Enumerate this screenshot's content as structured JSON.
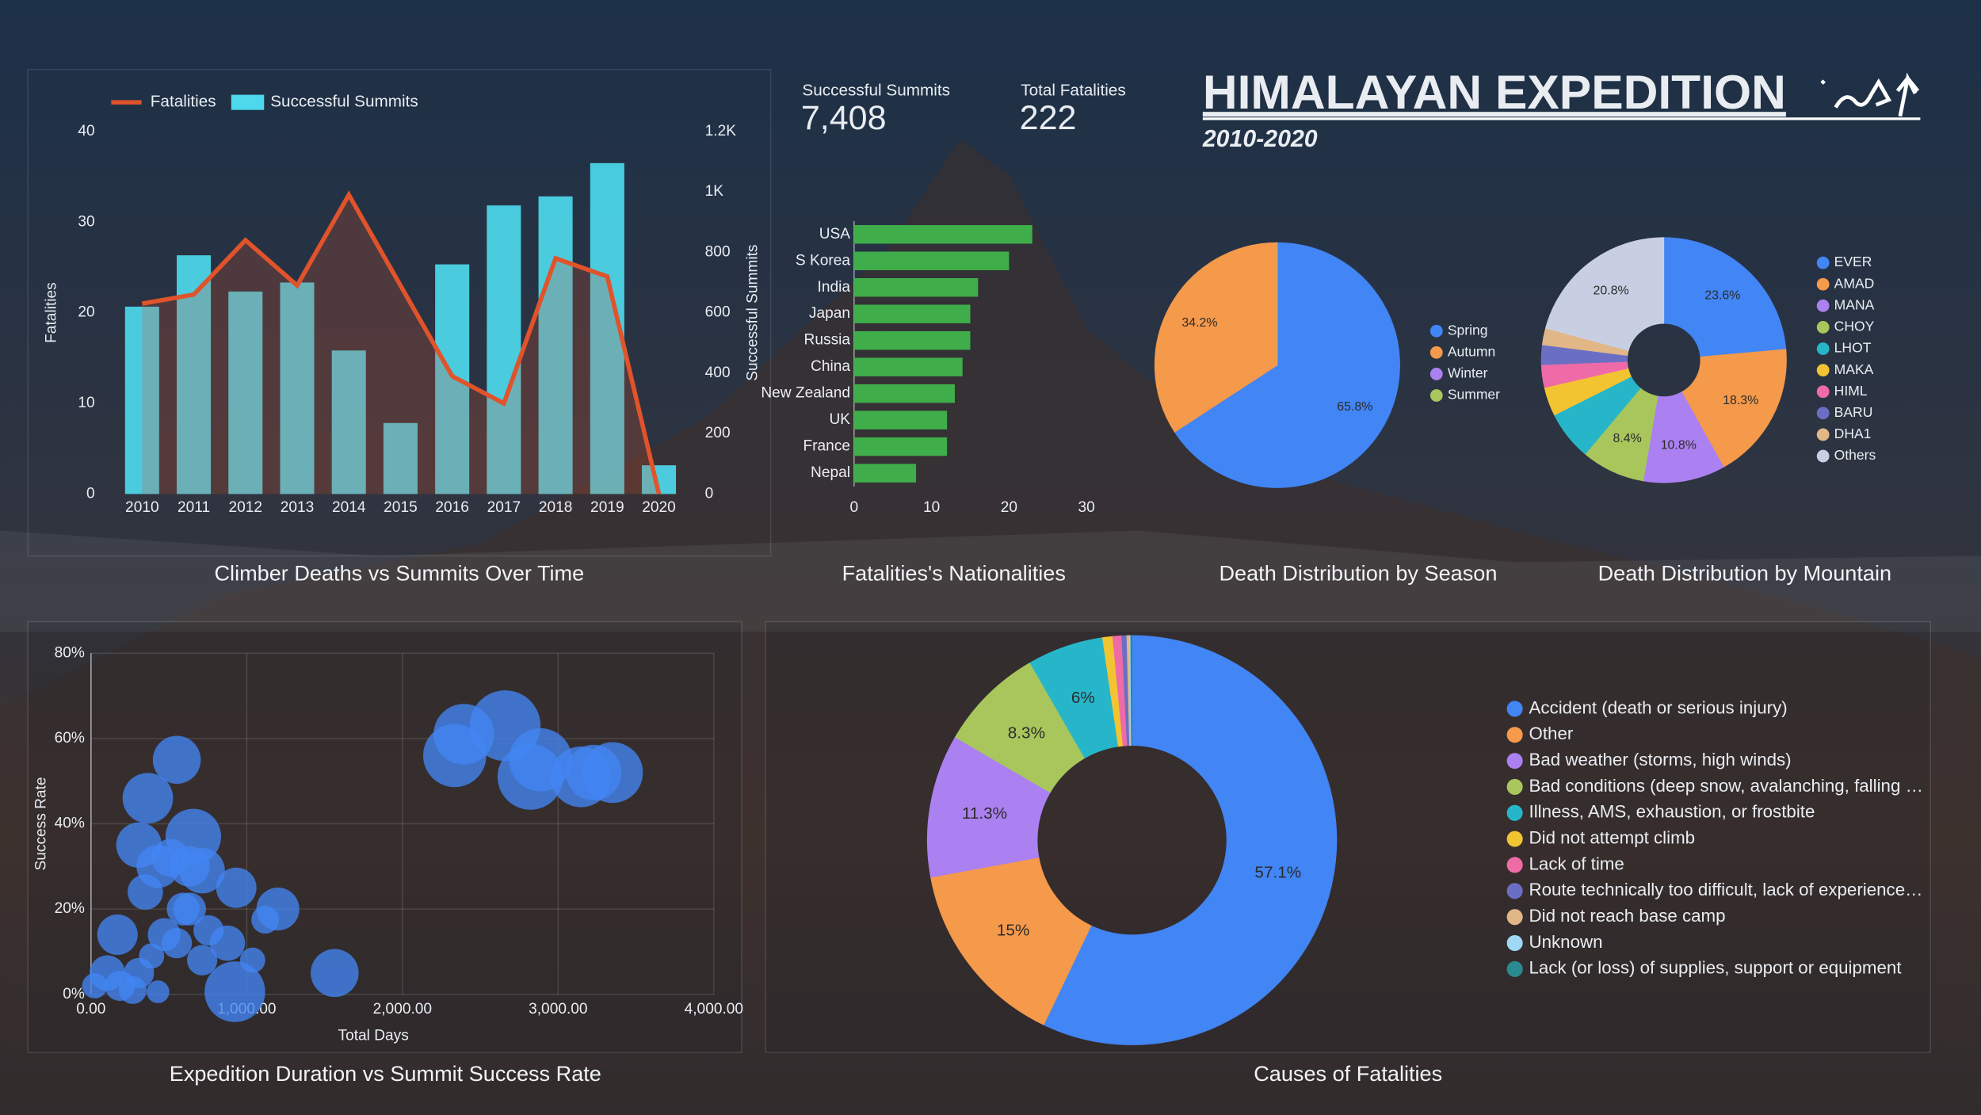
{
  "header": {
    "title": "HIMALAYAN EXPEDITION",
    "subtitle": "2010-2020"
  },
  "kpis": [
    {
      "label": "Successful Summits",
      "value": 7408,
      "value_label": "7,408"
    },
    {
      "label": "Total Fatalities",
      "value": 222
    }
  ],
  "chart_data": [
    {
      "type": "combo",
      "title": "Climber Deaths vs Summits Over Time",
      "categories": [
        "2010",
        "2011",
        "2012",
        "2013",
        "2014",
        "2015",
        "2016",
        "2017",
        "2018",
        "2019",
        "2020"
      ],
      "ylabel": "Fatalities",
      "y2label": "Successful Summits",
      "ylim": [
        0,
        40
      ],
      "yticks": [
        0,
        10,
        20,
        30,
        40
      ],
      "y2lim": [
        0,
        1200
      ],
      "y2ticks": [
        0,
        200,
        400,
        600,
        800,
        {
          "value": 1000,
          "label": "1K"
        },
        {
          "value": 1200,
          "label": "1.2K"
        }
      ],
      "legend": "top-left",
      "series": [
        {
          "name": "Fatalities",
          "type": "line",
          "color": "#e0532b",
          "values": [
            21,
            22,
            28,
            23,
            33,
            23,
            13,
            10,
            26,
            24,
            0
          ]
        },
        {
          "name": "Successful Summits",
          "type": "bar",
          "axis": "y2",
          "color": "#4dd8ec",
          "values": [
            620,
            790,
            670,
            700,
            475,
            235,
            760,
            955,
            985,
            1095,
            95
          ]
        }
      ]
    },
    {
      "type": "bar",
      "orientation": "horizontal",
      "title": "Fatalities's Nationalities",
      "categories": [
        "USA",
        "S Korea",
        "India",
        "Japan",
        "Russia",
        "China",
        "New Zealand",
        "UK",
        "France",
        "Nepal"
      ],
      "values": [
        23,
        20,
        16,
        15,
        15,
        14,
        13,
        12,
        12,
        8
      ],
      "color": "#3fae4a",
      "xlim": [
        0,
        30
      ],
      "xticks": [
        0,
        10,
        20,
        30
      ]
    },
    {
      "type": "pie",
      "title": "Death Distribution by Season",
      "categories": [
        "Spring",
        "Autumn",
        "Winter",
        "Summer"
      ],
      "values": [
        65.8,
        34.2,
        0,
        0
      ],
      "value_labels": [
        "65.8%",
        "34.2%",
        null,
        null
      ],
      "colors": [
        "#4285f4",
        "#f5994b",
        "#ab80f0",
        "#a8c65c"
      ],
      "legend": "right"
    },
    {
      "type": "donut",
      "title": "Death Distribution by Mountain",
      "categories": [
        "EVER",
        "AMAD",
        "MANA",
        "CHOY",
        "LHOT",
        "MAKA",
        "HIML",
        "BARU",
        "DHA1",
        "Others"
      ],
      "values": [
        23.6,
        18.3,
        10.8,
        8.4,
        6.5,
        3.8,
        3,
        2.6,
        2.2,
        20.8
      ],
      "value_labels": [
        "23.6%",
        "18.3%",
        "10.8%",
        "8.4%",
        null,
        null,
        null,
        null,
        null,
        "20.8%"
      ],
      "colors": [
        "#4285f4",
        "#f5994b",
        "#ab80f0",
        "#a8c65c",
        "#27b6c9",
        "#f2c431",
        "#ef6ba8",
        "#6b6fc4",
        "#e1b787",
        "#c9cfe3"
      ],
      "legend": "right"
    },
    {
      "type": "bubble",
      "title": "Expedition Duration vs Summit Success Rate",
      "xlabel": "Total Days",
      "ylabel": "Success Rate",
      "color": "#4285f4",
      "grid": true,
      "xlim": [
        0,
        4000
      ],
      "xticks": [
        {
          "value": 0,
          "label": "0.00"
        },
        {
          "value": 1000,
          "label": "1,000.00"
        },
        {
          "value": 2000,
          "label": "2,000.00"
        },
        {
          "value": 3000,
          "label": "3,000.00"
        },
        {
          "value": 4000,
          "label": "4,000.00"
        }
      ],
      "ylim": [
        0,
        80
      ],
      "yticks": [
        {
          "value": 0,
          "label": "0%"
        },
        {
          "value": 20,
          "label": "20%"
        },
        {
          "value": 40,
          "label": "40%"
        },
        {
          "value": 60,
          "label": "60%"
        },
        {
          "value": 80,
          "label": "80%"
        }
      ],
      "x": [
        2336,
        2395,
        2660,
        2887,
        2822,
        3147,
        3350,
        3228,
        551,
        365,
        657,
        308,
        430,
        633,
        714,
        933,
        1200,
        1119,
        170,
        633,
        551,
        876,
        1038,
        924,
        1565,
        105,
        186,
        24,
        308,
        430,
        714,
        470,
        349,
        511,
        592,
        755,
        268,
        389
      ],
      "y": [
        56,
        61,
        63,
        55,
        51,
        51,
        52,
        52,
        55,
        46,
        37,
        35,
        30,
        30,
        29,
        25,
        20,
        17.5,
        14,
        20,
        12,
        12,
        8,
        0.6,
        5,
        5,
        2,
        2,
        5,
        0.6,
        8,
        14,
        24,
        32,
        20,
        15,
        1,
        9
      ],
      "sizes": [
        25,
        24,
        28,
        25,
        26,
        24,
        24,
        22,
        19,
        20,
        22,
        18,
        17,
        16,
        18,
        16,
        17,
        11,
        16,
        13,
        12,
        14,
        10,
        24,
        19,
        14,
        12,
        10,
        12,
        9,
        12,
        13,
        14,
        15,
        13,
        12,
        11,
        10
      ]
    },
    {
      "type": "donut",
      "title": "Causes of Fatalities",
      "categories": [
        "Accident (death or serious injury)",
        "Other",
        "Bad weather (storms, high winds)",
        "Bad conditions (deep snow, avalanching, falling …",
        "Illness, AMS, exhaustion, or frostbite",
        "Did not attempt climb",
        "Lack of time",
        "Route technically too difficult, lack of experience…",
        "Did not reach base camp",
        "Unknown",
        "Lack (or loss) of supplies, support or equipment"
      ],
      "values": [
        57.1,
        15,
        11.3,
        8.3,
        6,
        0.8,
        0.7,
        0.4,
        0.2,
        0.1,
        0.1
      ],
      "value_labels": [
        "57.1%",
        "15%",
        "11.3%",
        "8.3%",
        "6%",
        null,
        null,
        null,
        null,
        null,
        null
      ],
      "colors": [
        "#4285f4",
        "#f5994b",
        "#ab80f0",
        "#a8c65c",
        "#27b6c9",
        "#f2c431",
        "#ef6ba8",
        "#6b6fc4",
        "#e1b787",
        "#9fd8f5",
        "#2a8a8f"
      ],
      "legend": "right"
    }
  ]
}
